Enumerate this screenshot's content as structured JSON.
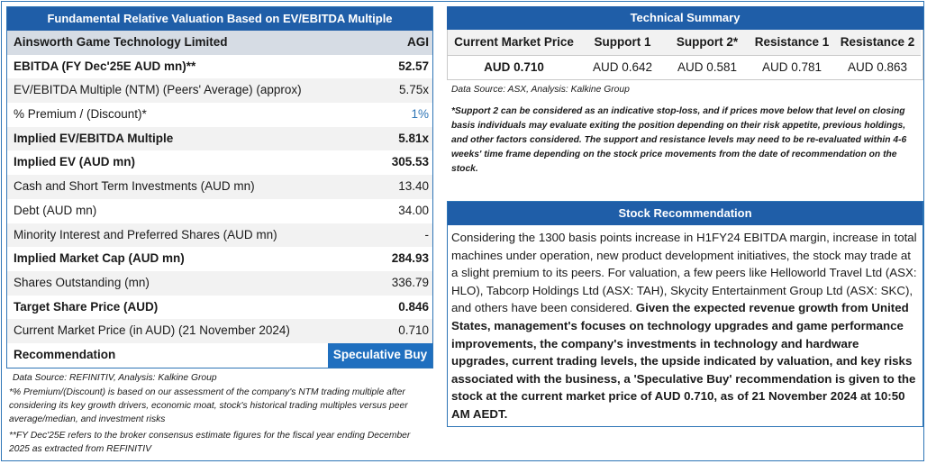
{
  "valuation": {
    "title": "Fundamental Relative Valuation Based on EV/EBITDA Multiple",
    "company": "Ainsworth Game Technology Limited",
    "ticker": "AGI",
    "rows": [
      {
        "label": "EBITDA (FY Dec'25E AUD mn)**",
        "value": "52.57"
      },
      {
        "label": "EV/EBITDA Multiple (NTM)  (Peers' Average) (approx)",
        "value": "5.75x"
      },
      {
        "label": "% Premium / (Discount)*",
        "value": "1%"
      },
      {
        "label": "Implied EV/EBITDA Multiple",
        "value": "5.81x"
      },
      {
        "label": "Implied EV (AUD mn)",
        "value": "305.53"
      },
      {
        "label": "Cash and Short Term Investments (AUD mn)",
        "value": "13.40"
      },
      {
        "label": "Debt (AUD mn)",
        "value": "34.00"
      },
      {
        "label": "Minority Interest and Preferred Shares (AUD mn)",
        "value": "-"
      },
      {
        "label": "Implied Market Cap (AUD mn)",
        "value": "284.93"
      },
      {
        "label": "Shares Outstanding (mn)",
        "value": "336.79"
      },
      {
        "label": "Target Share Price (AUD)",
        "value": "0.846"
      },
      {
        "label": "Current Market Price (in AUD) (21 November 2024)",
        "value": "0.710"
      }
    ],
    "recommendation_label": "Recommendation",
    "recommendation_value": "Speculative Buy",
    "source": "Data Source: REFINITIV, Analysis: Kalkine Group",
    "note1": "*% Premium/(Discount) is based on our assessment of the company's NTM trading multiple after considering its key growth drivers, economic moat, stock's historical trading multiples versus peer average/median, and investment risks",
    "note2": "**FY Dec'25E refers to the broker consensus estimate figures for the fiscal year ending December 2025  as extracted from REFINITIV"
  },
  "technical": {
    "title": "Technical Summary",
    "headers": [
      "Current Market Price",
      "Support 1",
      "Support 2*",
      "Resistance 1",
      "Resistance 2"
    ],
    "values": [
      "AUD 0.710",
      "AUD 0.642",
      "AUD 0.581",
      "AUD 0.781",
      "AUD 0.863"
    ],
    "source": "Data Source: ASX, Analysis: Kalkine Group",
    "note": "*Support 2 can be considered as an indicative stop-loss, and if prices move below that level on closing basis individuals may evaluate exiting the position depending on their risk appetite, previous holdings, and other factors considered. The support and resistance levels may need to be re-evaluated within 4-6 weeks' time frame depending on the stock price movements from the date of recommendation on the stock."
  },
  "recommendation": {
    "title": "Stock Recommendation",
    "text_plain": "Considering the 1300 basis points increase in H1FY24 EBITDA margin, increase in total machines under operation, new product development initiatives, the stock may trade at a slight premium to its peers. For valuation, a few peers like Helloworld Travel Ltd (ASX: HLO), Tabcorp Holdings Ltd (ASX: TAH), Skycity Entertainment Group Ltd (ASX: SKC), and others have been considered. ",
    "text_bold": "Given the expected revenue growth from United States, management's focuses on technology upgrades and game performance improvements, the company's investments in technology and hardware upgrades, current trading levels, the upside indicated by valuation, and key risks associated with the business, a 'Speculative Buy' recommendation is given to the stock at the current market price of AUD 0.710, as of 21 November 2024 at 10:50 AM AEDT."
  },
  "colors": {
    "header_blue": "#1f5ea8",
    "accent_blue": "#2e75b6",
    "reco_blue": "#1f6fbf",
    "company_band": "#d6dce4"
  }
}
